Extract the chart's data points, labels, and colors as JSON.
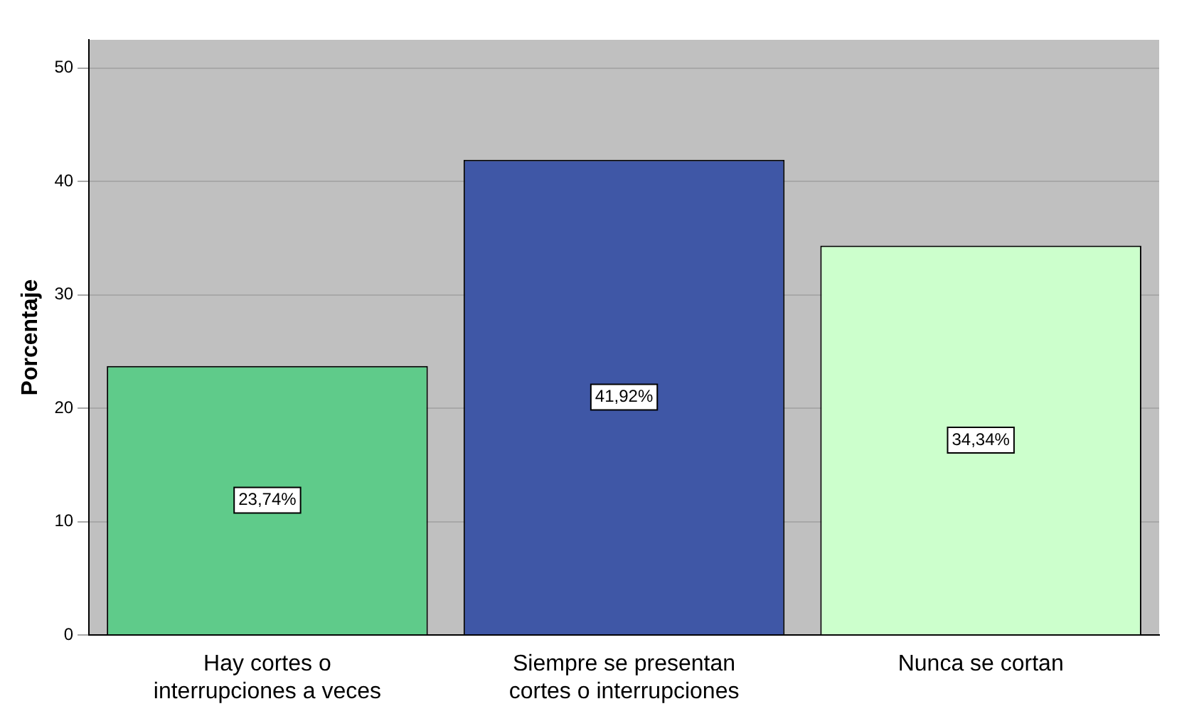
{
  "chart_data": {
    "type": "bar",
    "ylabel": "Porcentaje",
    "categories": [
      "Hay cortes o interrupciones a veces",
      "Siempre se presentan cortes o interrupciones",
      "Nunca se cortan"
    ],
    "values": [
      23.74,
      41.92,
      34.34
    ],
    "colors": [
      "#5fcb8a",
      "#3f57a6",
      "#ccffcc"
    ],
    "value_labels": [
      "23,74%",
      "41,92%",
      "34,34%"
    ],
    "ylim": [
      0,
      52.5
    ],
    "yticks": [
      0,
      10,
      20,
      30,
      40,
      50
    ],
    "grid": "y"
  }
}
